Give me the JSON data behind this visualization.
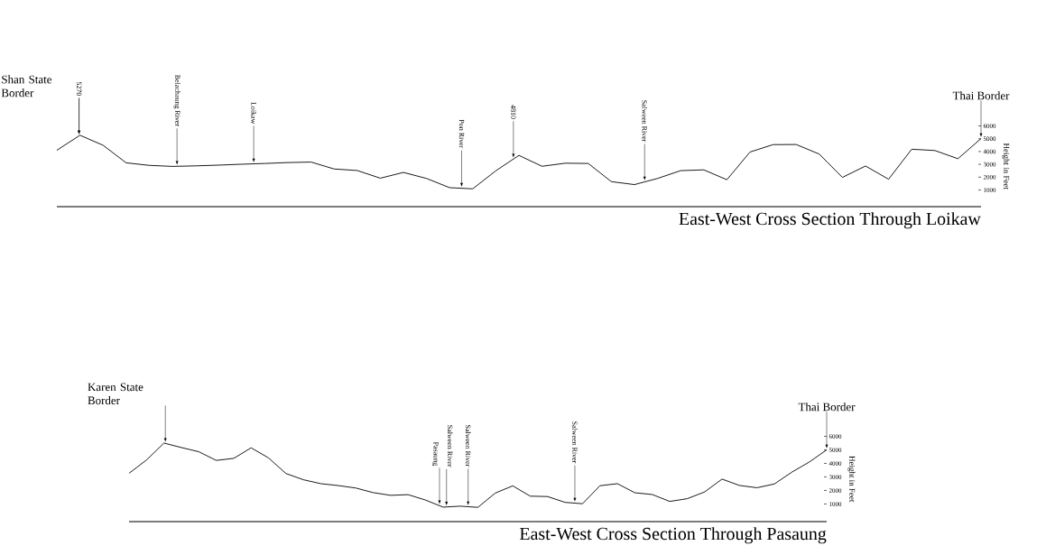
{
  "chart_data": [
    {
      "type": "line",
      "title": "East-West Cross Section Through Loikaw",
      "ylabel": "Height in Feet",
      "ylim": [
        -300,
        6000
      ],
      "yticks": [
        1000,
        2000,
        3000,
        4000,
        5000,
        6000
      ],
      "tick_labels": "y",
      "categories": [
        null,
        null,
        null,
        null,
        null,
        null,
        null,
        null,
        null,
        null,
        null,
        null,
        null,
        null,
        null,
        null,
        null,
        null,
        null,
        null,
        null,
        null,
        null,
        null,
        null,
        null,
        null,
        null,
        null,
        null,
        null,
        null,
        null,
        null,
        null,
        null,
        null,
        null,
        null,
        null,
        null
      ],
      "series": [
        {
          "color": "#000000",
          "values": [
            4100,
            5270,
            4490,
            3120,
            2920,
            2840,
            2880,
            2940,
            3010,
            3070,
            3140,
            3180,
            2640,
            2520,
            1920,
            2370,
            1900,
            1180,
            1090,
            2500,
            3700,
            2850,
            3090,
            3070,
            1650,
            1420,
            1900,
            2510,
            2570,
            1800,
            3960,
            4540,
            4550,
            3800,
            1980,
            2870,
            1840,
            4180,
            4080,
            3440,
            5010
          ]
        }
      ],
      "annotations": [
        "Shan State Border",
        "5270",
        "Belachaung River",
        "Loikaw",
        "Pon River",
        "4810",
        "Salween River",
        "Thai Border"
      ]
    },
    {
      "type": "line",
      "title": "East-West Cross Section Through Pasaung",
      "ylabel": "Height in Feet",
      "ylim": [
        -300,
        6000
      ],
      "yticks": [
        1000,
        2000,
        3000,
        4000,
        5000,
        6000
      ],
      "tick_labels": "y",
      "categories": [
        null,
        null,
        null,
        null,
        null,
        null,
        null,
        null,
        null,
        null,
        null,
        null,
        null,
        null,
        null,
        null,
        null,
        null,
        null,
        null,
        null,
        null,
        null,
        null,
        null,
        null,
        null,
        null,
        null,
        null,
        null,
        null,
        null,
        null,
        null,
        null,
        null,
        null,
        null,
        null,
        null
      ],
      "series": [
        {
          "color": "#000000",
          "values": [
            3270,
            4250,
            5500,
            5170,
            4860,
            4220,
            4370,
            5150,
            4400,
            3250,
            2790,
            2500,
            2360,
            2180,
            1840,
            1640,
            1690,
            1290,
            770,
            840,
            750,
            1810,
            2340,
            1580,
            1550,
            1120,
            1020,
            2350,
            2500,
            1830,
            1700,
            1190,
            1390,
            1890,
            2840,
            2370,
            2200,
            2480,
            3350,
            4100,
            5000
          ]
        }
      ],
      "annotations": [
        "Karen State Border",
        "Pasaung",
        "Salween River",
        "Salween River",
        "Salween River",
        "Thai Border"
      ]
    }
  ]
}
